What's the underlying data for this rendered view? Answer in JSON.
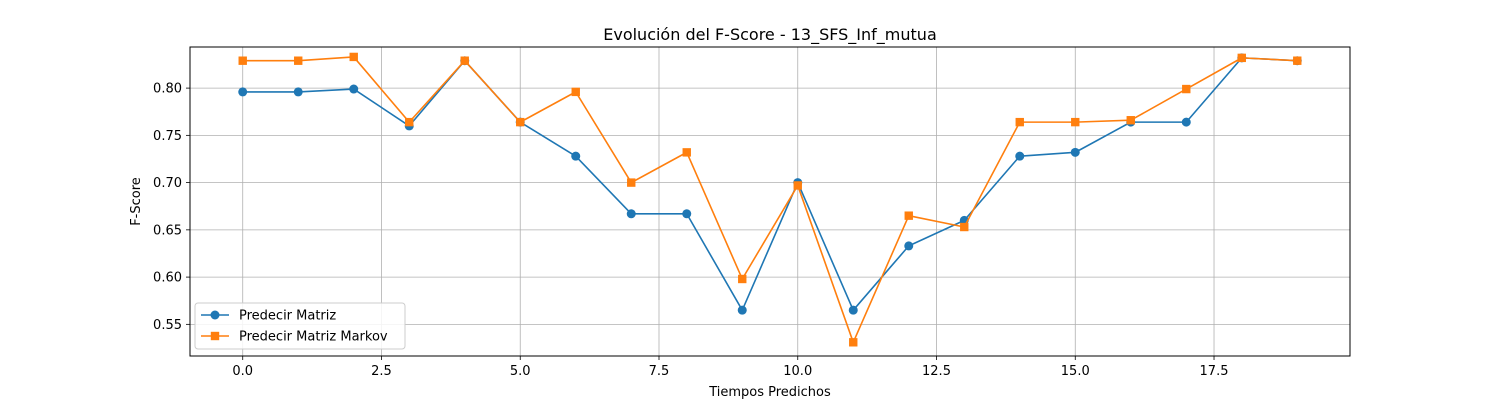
{
  "chart_data": {
    "type": "line",
    "title": "Evolución del F-Score - 13_SFS_Inf_mutua",
    "xlabel": "Tiempos Predichos",
    "ylabel": "F-Score",
    "xlim": [
      -0.95,
      19.95
    ],
    "ylim": [
      0.5165,
      0.8435
    ],
    "xticks": [
      0.0,
      2.5,
      5.0,
      7.5,
      10.0,
      12.5,
      15.0,
      17.5
    ],
    "xtick_labels": [
      "0.0",
      "2.5",
      "5.0",
      "7.5",
      "10.0",
      "12.5",
      "15.0",
      "17.5"
    ],
    "yticks": [
      0.55,
      0.6,
      0.65,
      0.7,
      0.75,
      0.8
    ],
    "ytick_labels": [
      "0.55",
      "0.60",
      "0.65",
      "0.70",
      "0.75",
      "0.80"
    ],
    "grid": true,
    "legend_position": "lower-left",
    "x": [
      0,
      1,
      2,
      3,
      4,
      5,
      6,
      7,
      8,
      9,
      10,
      11,
      12,
      13,
      14,
      15,
      16,
      17,
      18,
      19
    ],
    "series": [
      {
        "name": "Predecir Matriz",
        "color": "#1f77b4",
        "marker": "circle",
        "values": [
          0.796,
          0.796,
          0.799,
          0.76,
          0.829,
          0.764,
          0.728,
          0.667,
          0.667,
          0.565,
          0.7,
          0.565,
          0.633,
          0.66,
          0.728,
          0.732,
          0.764,
          0.764,
          0.832,
          0.829
        ]
      },
      {
        "name": "Predecir Matriz Markov",
        "color": "#ff7f0e",
        "marker": "square",
        "values": [
          0.829,
          0.829,
          0.833,
          0.764,
          0.829,
          0.764,
          0.796,
          0.7,
          0.732,
          0.598,
          0.697,
          0.531,
          0.665,
          0.653,
          0.764,
          0.764,
          0.766,
          0.799,
          0.832,
          0.829
        ]
      }
    ]
  }
}
